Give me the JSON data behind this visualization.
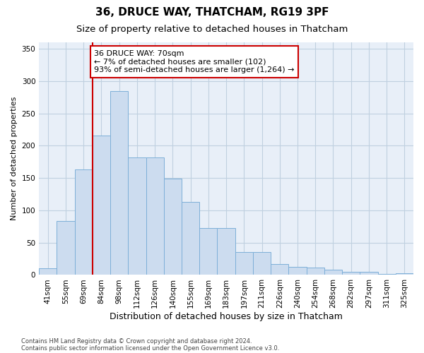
{
  "title": "36, DRUCE WAY, THATCHAM, RG19 3PF",
  "subtitle": "Size of property relative to detached houses in Thatcham",
  "xlabel": "Distribution of detached houses by size in Thatcham",
  "ylabel": "Number of detached properties",
  "categories": [
    "41sqm",
    "55sqm",
    "69sqm",
    "84sqm",
    "98sqm",
    "112sqm",
    "126sqm",
    "140sqm",
    "155sqm",
    "169sqm",
    "183sqm",
    "197sqm",
    "211sqm",
    "226sqm",
    "240sqm",
    "254sqm",
    "268sqm",
    "282sqm",
    "297sqm",
    "311sqm",
    "325sqm"
  ],
  "values": [
    10,
    83,
    163,
    216,
    285,
    182,
    182,
    149,
    113,
    73,
    73,
    36,
    36,
    17,
    13,
    11,
    8,
    5,
    5,
    2,
    3
  ],
  "bar_color": "#ccdcef",
  "bar_edge_color": "#7dafd8",
  "highlight_color": "#cc0000",
  "annotation_line1": "36 DRUCE WAY: 70sqm",
  "annotation_line2": "← 7% of detached houses are smaller (102)",
  "annotation_line3": "93% of semi-detached houses are larger (1,264) →",
  "annotation_box_color": "#ffffff",
  "annotation_box_edge": "#cc0000",
  "ylim": [
    0,
    360
  ],
  "yticks": [
    0,
    50,
    100,
    150,
    200,
    250,
    300,
    350
  ],
  "footer_line1": "Contains HM Land Registry data © Crown copyright and database right 2024.",
  "footer_line2": "Contains public sector information licensed under the Open Government Licence v3.0.",
  "background_color": "#ffffff",
  "plot_bg_color": "#e8eff8",
  "grid_color": "#c0d0e0",
  "title_fontsize": 11,
  "subtitle_fontsize": 9.5,
  "tick_fontsize": 7.5,
  "ylabel_fontsize": 8,
  "xlabel_fontsize": 9,
  "footer_fontsize": 6,
  "annotation_fontsize": 8
}
